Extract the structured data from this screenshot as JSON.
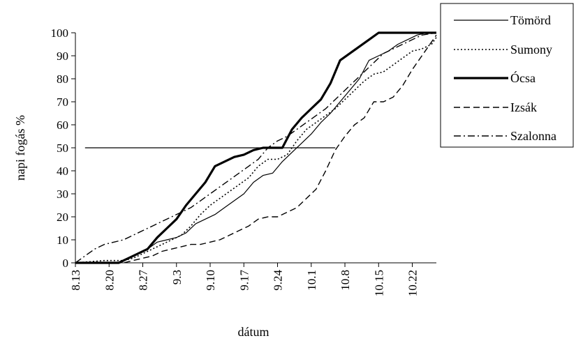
{
  "chart_data": {
    "type": "line",
    "title": "",
    "xlabel": "dátum",
    "ylabel": "napi fogás %",
    "ylim": [
      0,
      100
    ],
    "yticks": [
      0,
      10,
      20,
      30,
      40,
      50,
      60,
      70,
      80,
      90,
      100
    ],
    "x_tick_labels": [
      "8.13",
      "8.20",
      "8.27",
      "9.3",
      "9.10",
      "9.17",
      "9.24",
      "10.1",
      "10.8",
      "10.15",
      "10.22"
    ],
    "x_tick_days": [
      0,
      7,
      14,
      21,
      28,
      35,
      42,
      49,
      56,
      63,
      70
    ],
    "xlim": [
      0,
      75
    ],
    "grid": false,
    "legend_position": "top-right",
    "reference_line": {
      "y": 50,
      "x_start": 2,
      "x_end": 54
    },
    "series": [
      {
        "name": "Tömörd",
        "style": "solid",
        "x": [
          0,
          5,
          9,
          11,
          13,
          15,
          17,
          19,
          21,
          23,
          25,
          27,
          29,
          31,
          33,
          35,
          37,
          39,
          41,
          43,
          45,
          47,
          49,
          51,
          53,
          55,
          57,
          59,
          61,
          63,
          65,
          67,
          69,
          71,
          73,
          75
        ],
        "values": [
          0,
          0,
          0,
          2,
          4,
          6,
          9,
          10,
          11,
          13,
          17,
          19,
          21,
          24,
          27,
          30,
          35,
          38,
          39,
          44,
          48,
          52,
          56,
          61,
          65,
          70,
          75,
          80,
          88,
          90,
          92,
          95,
          97,
          99,
          100,
          100
        ]
      },
      {
        "name": "Sumony",
        "style": "dotted",
        "x": [
          0,
          6,
          10,
          12,
          14,
          16,
          18,
          20,
          22,
          24,
          26,
          28,
          30,
          32,
          34,
          36,
          38,
          40,
          42,
          44,
          46,
          48,
          50,
          52,
          54,
          56,
          58,
          60,
          62,
          64,
          66,
          68,
          70,
          72,
          74,
          75
        ],
        "values": [
          0,
          1,
          1,
          2,
          4,
          6,
          8,
          10,
          12,
          16,
          21,
          25,
          28,
          31,
          34,
          37,
          42,
          45,
          45,
          47,
          53,
          58,
          61,
          64,
          67,
          71,
          75,
          79,
          82,
          83,
          86,
          89,
          92,
          93,
          95,
          98
        ]
      },
      {
        "name": "Ócsa",
        "style": "thick",
        "x": [
          0,
          9,
          11,
          13,
          15,
          17,
          19,
          21,
          23,
          25,
          27,
          29,
          31,
          33,
          35,
          37,
          39,
          41,
          43,
          45,
          47,
          49,
          51,
          53,
          55,
          57,
          59,
          61,
          63,
          75
        ],
        "values": [
          0,
          0,
          2,
          4,
          6,
          11,
          15,
          19,
          25,
          30,
          35,
          42,
          44,
          46,
          47,
          49,
          50,
          50,
          50,
          58,
          63,
          67,
          71,
          78,
          88,
          91,
          94,
          97,
          100,
          100
        ]
      },
      {
        "name": "Izsák",
        "style": "dashed",
        "x": [
          0,
          10,
          14,
          16,
          18,
          20,
          22,
          24,
          26,
          28,
          30,
          32,
          34,
          36,
          38,
          40,
          42,
          44,
          46,
          48,
          50,
          52,
          54,
          56,
          58,
          60,
          62,
          64,
          66,
          68,
          70,
          72,
          74,
          75
        ],
        "values": [
          0,
          0,
          2,
          3,
          5,
          6,
          7,
          8,
          8,
          9,
          10,
          12,
          14,
          16,
          19,
          20,
          20,
          22,
          24,
          28,
          32,
          40,
          49,
          55,
          60,
          63,
          70,
          70,
          72,
          77,
          84,
          90,
          96,
          99
        ]
      },
      {
        "name": "Szalonna",
        "style": "dashdot",
        "x": [
          0,
          2,
          4,
          6,
          8,
          10,
          12,
          14,
          16,
          18,
          20,
          22,
          24,
          26,
          28,
          30,
          32,
          34,
          36,
          38,
          40,
          42,
          44,
          46,
          48,
          50,
          52,
          54,
          56,
          58,
          60,
          62,
          64,
          66,
          68,
          70,
          72,
          75
        ],
        "values": [
          0,
          3,
          6,
          8,
          9,
          10,
          12,
          14,
          16,
          18,
          20,
          22,
          24,
          27,
          30,
          33,
          36,
          39,
          42,
          45,
          50,
          53,
          55,
          58,
          61,
          64,
          67,
          71,
          75,
          79,
          83,
          87,
          91,
          93,
          95,
          97,
          99,
          100
        ]
      }
    ]
  }
}
